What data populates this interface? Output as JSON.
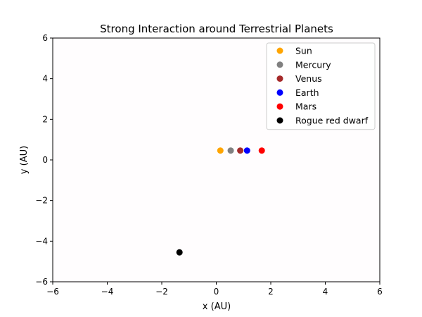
{
  "chart_data": {
    "type": "scatter",
    "title": "Strong Interaction around Terrestrial Planets",
    "xlabel": "x (AU)",
    "ylabel": "y (AU)",
    "xlim": [
      -6,
      6
    ],
    "ylim": [
      -6,
      6
    ],
    "xticks": [
      -6,
      -4,
      -2,
      0,
      2,
      4,
      6
    ],
    "yticks": [
      -6,
      -4,
      -2,
      0,
      2,
      4,
      6
    ],
    "xtick_labels": [
      "−6",
      "−4",
      "−2",
      "0",
      "2",
      "4",
      "6"
    ],
    "ytick_labels": [
      "−6",
      "−4",
      "−2",
      "0",
      "2",
      "4",
      "6"
    ],
    "grid": false,
    "legend_position": "top-right",
    "series": [
      {
        "name": "Sun",
        "color": "#FFA500",
        "x": [
          0.15
        ],
        "y": [
          0.46
        ]
      },
      {
        "name": "Mercury",
        "color": "#808080",
        "x": [
          0.53
        ],
        "y": [
          0.46
        ]
      },
      {
        "name": "Venus",
        "color": "#A52A2A",
        "x": [
          0.88
        ],
        "y": [
          0.46
        ]
      },
      {
        "name": "Earth",
        "color": "#0000FF",
        "x": [
          1.13
        ],
        "y": [
          0.46
        ]
      },
      {
        "name": "Mars",
        "color": "#FF0000",
        "x": [
          1.67
        ],
        "y": [
          0.46
        ]
      },
      {
        "name": "Rogue red dwarf",
        "color": "#000000",
        "x": [
          -1.35
        ],
        "y": [
          -4.55
        ]
      }
    ]
  }
}
